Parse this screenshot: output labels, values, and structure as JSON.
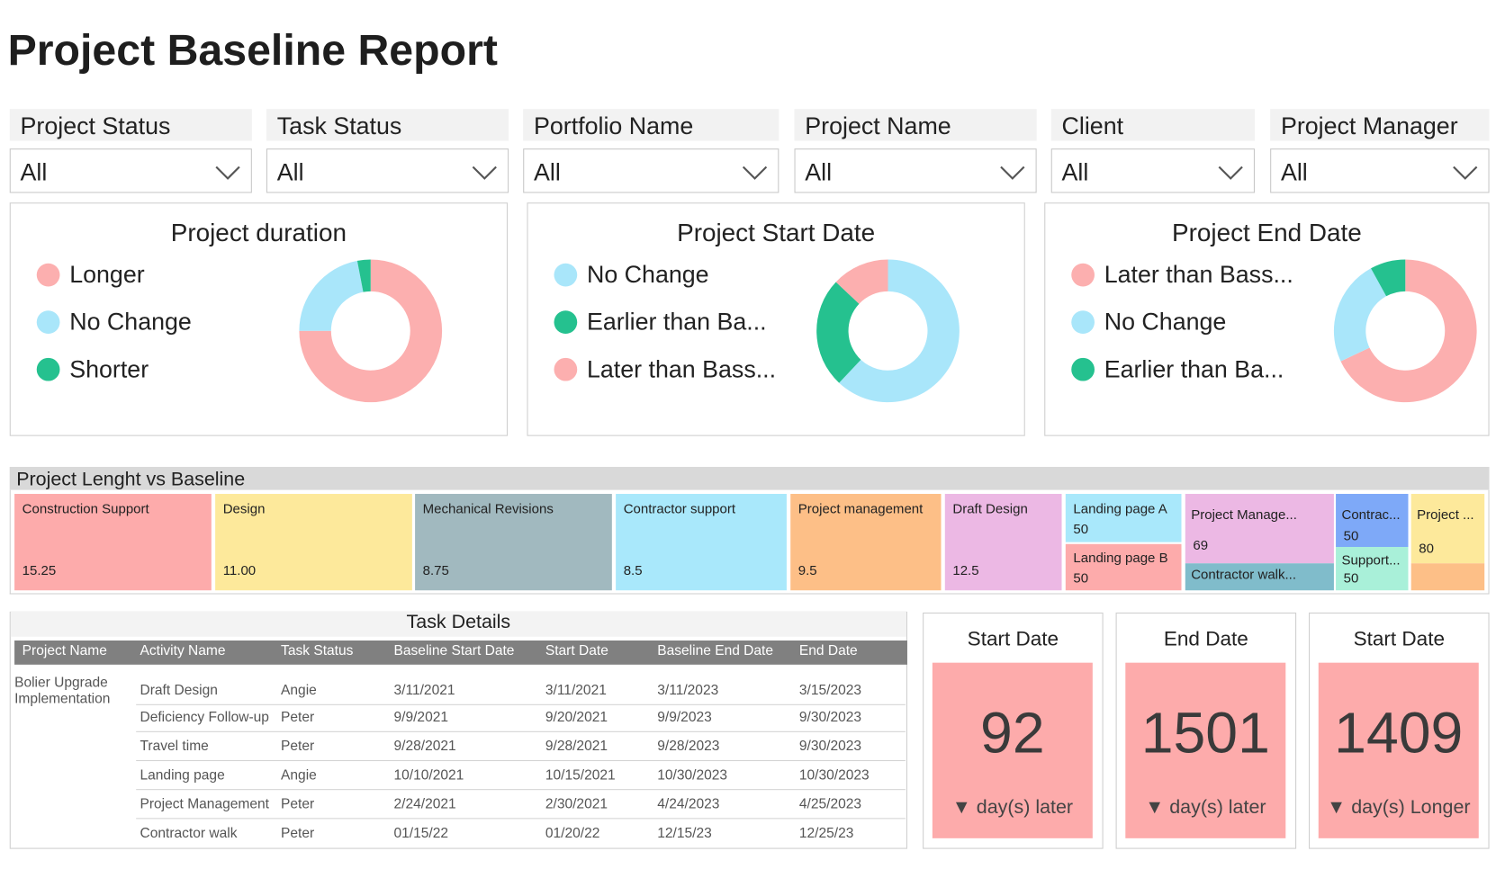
{
  "title": "Project Baseline Report",
  "filters": [
    {
      "label": "Project Status",
      "value": "All"
    },
    {
      "label": "Task Status",
      "value": "All"
    },
    {
      "label": "Portfolio Name",
      "value": "All"
    },
    {
      "label": "Project Name",
      "value": "All"
    },
    {
      "label": "Client",
      "value": "All"
    },
    {
      "label": "Project Manager",
      "value": "All"
    }
  ],
  "chart_data": [
    {
      "type": "pie",
      "title": "Project duration",
      "categories": [
        "Longer",
        "No Change",
        "Shorter"
      ],
      "values": [
        75,
        22,
        3
      ],
      "colors": [
        "#fcafaf",
        "#a9e6fa",
        "#25c18f"
      ]
    },
    {
      "type": "pie",
      "title": "Project Start Date",
      "categories": [
        "No Change",
        "Earlier than Ba...",
        "Later than Bass..."
      ],
      "values": [
        62,
        25,
        13
      ],
      "colors": [
        "#a9e6fa",
        "#25c18f",
        "#fcafaf"
      ]
    },
    {
      "type": "pie",
      "title": "Project End Date",
      "categories": [
        "Later than Bass...",
        "No Change",
        "Earlier than Ba..."
      ],
      "values": [
        68,
        24,
        8
      ],
      "colors": [
        "#fcafaf",
        "#a9e6fa",
        "#25c18f"
      ]
    }
  ],
  "treemap": {
    "title": "Project Lenght vs Baseline",
    "tiles": [
      {
        "label": "Construction Support",
        "value": "15.25",
        "color": "#fdabab"
      },
      {
        "label": "Design",
        "value": "11.00",
        "color": "#fde99b"
      },
      {
        "label": "Mechanical Revisions",
        "value": "8.75",
        "color": "#a1b9bf"
      },
      {
        "label": "Contractor support",
        "value": "8.5",
        "color": "#a9e8fb"
      },
      {
        "label": "Project management",
        "value": "9.5",
        "color": "#fdbf87"
      },
      {
        "label": "Draft Design",
        "value": "12.5",
        "color": "#ecb8e4"
      },
      {
        "label": "Landing page A",
        "value": "50",
        "color": "#a9e8fb"
      },
      {
        "label": "Landing page B",
        "value": "50",
        "color": "#fdabab"
      },
      {
        "label": "Project Manage...",
        "value": "69",
        "color": "#ecb8e4"
      },
      {
        "label": "Contractor walk...",
        "color": "#80bccb"
      },
      {
        "label": "Contrac...",
        "value": "50",
        "color": "#7ea9f8"
      },
      {
        "label": "Support...",
        "value": "50",
        "color": "#a9f0d9"
      },
      {
        "label": "Project ...",
        "value": "80",
        "color": "#fde99b"
      }
    ]
  },
  "table": {
    "title": "Task Details",
    "columns": [
      "Project Name",
      "Activity Name",
      "Task Status",
      "Baseline Start Date",
      "Start Date",
      "Baseline End Date",
      "End Date"
    ],
    "group": "Bolier Upgrade Implementation",
    "rows": [
      [
        "Draft Design",
        "Angie",
        "3/11/2021",
        "3/11/2021",
        "3/11/2023",
        "3/15/2023"
      ],
      [
        "Deficiency Follow-up",
        "Peter",
        "9/9/2021",
        "9/20/2021",
        "9/9/2023",
        "9/30/2023"
      ],
      [
        "Travel time",
        "Peter",
        "9/28/2021",
        "9/28/2021",
        "9/28/2023",
        "9/30/2023"
      ],
      [
        "Landing page",
        "Angie",
        "10/10/2021",
        "10/15/2021",
        "10/30/2023",
        "10/30/2023"
      ],
      [
        "Project Management",
        "Peter",
        "2/24/2021",
        "2/30/2021",
        "4/24/2023",
        "4/25/2023"
      ],
      [
        "Contractor walk",
        "Peter",
        "01/15/22",
        "01/20/22",
        "12/15/23",
        "12/25/23"
      ]
    ]
  },
  "cards": [
    {
      "title": "Start Date",
      "value": 92,
      "note": "▼ day(s) later"
    },
    {
      "title": "End Date",
      "value": 1501,
      "note": "▼ day(s) later"
    },
    {
      "title": "Start Date",
      "value": 1409,
      "note": "▼ day(s) Longer"
    }
  ]
}
